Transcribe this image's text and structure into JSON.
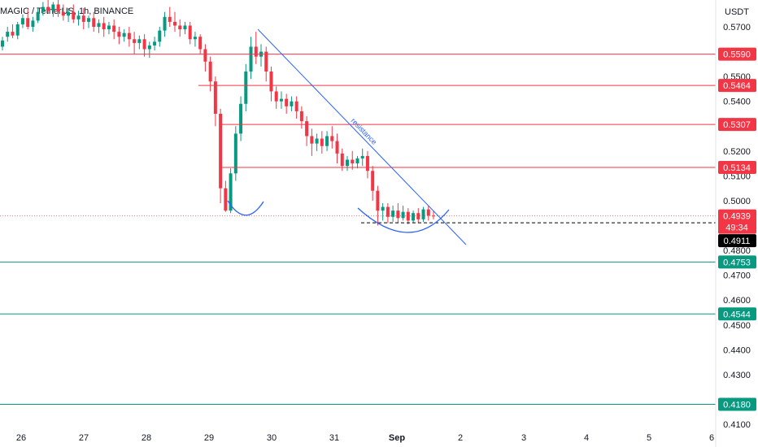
{
  "chart_data": {
    "type": "candlestick",
    "title": "MAGIC / TetherUS, 1h, BINANCE",
    "currency": "USDT",
    "ylim": [
      0.41,
      0.575
    ],
    "y_ticks": [
      "0.5700",
      "0.5500",
      "0.5400",
      "0.5200",
      "0.5100",
      "0.5000",
      "0.4800",
      "0.4700",
      "0.4600",
      "0.4500",
      "0.4400",
      "0.4300",
      "0.4100"
    ],
    "x_ticks": [
      "26",
      "27",
      "28",
      "29",
      "30",
      "31",
      "Sep",
      "2",
      "3",
      "4",
      "5",
      "6"
    ],
    "resistance_levels": [
      {
        "value": 0.559,
        "label": "0.5590",
        "color": "#f23645"
      },
      {
        "value": 0.5464,
        "label": "0.5464",
        "color": "#f23645"
      },
      {
        "value": 0.5307,
        "label": "0.5307",
        "color": "#f23645"
      },
      {
        "value": 0.5134,
        "label": "0.5134",
        "color": "#f23645"
      }
    ],
    "support_levels": [
      {
        "value": 0.4753,
        "label": "0.4753",
        "color": "#089981"
      },
      {
        "value": 0.4544,
        "label": "0.4544",
        "color": "#089981"
      },
      {
        "value": 0.418,
        "label": "0.4180",
        "color": "#089981"
      }
    ],
    "current_price": {
      "value": 0.4939,
      "label": "0.4939",
      "countdown": "49:34",
      "color": "#f23645"
    },
    "dashed_level": {
      "value": 0.4911,
      "label": "0.4911",
      "color": "#000000"
    },
    "trendline_label": "resistance",
    "colors": {
      "up": "#089981",
      "down": "#f23645",
      "annotation": "#2962ff"
    },
    "candles": [
      [
        0.562,
        0.566,
        0.5645,
        0.5605
      ],
      [
        0.566,
        0.57,
        0.568,
        0.564
      ],
      [
        0.568,
        0.571,
        0.5665,
        0.5655
      ],
      [
        0.5665,
        0.572,
        0.571,
        0.565
      ],
      [
        0.571,
        0.575,
        0.5735,
        0.5695
      ],
      [
        0.5735,
        0.577,
        0.57,
        0.569
      ],
      [
        0.57,
        0.574,
        0.5725,
        0.568
      ],
      [
        0.5725,
        0.5775,
        0.576,
        0.5715
      ],
      [
        0.576,
        0.58,
        0.578,
        0.5745
      ],
      [
        0.578,
        0.581,
        0.5765,
        0.5755
      ],
      [
        0.5765,
        0.58,
        0.579,
        0.574
      ],
      [
        0.579,
        0.581,
        0.576,
        0.574
      ],
      [
        0.576,
        0.579,
        0.5745,
        0.5725
      ],
      [
        0.5745,
        0.5775,
        0.576,
        0.572
      ],
      [
        0.576,
        0.579,
        0.573,
        0.5715
      ],
      [
        0.573,
        0.5765,
        0.5745,
        0.5705
      ],
      [
        0.5745,
        0.5775,
        0.572,
        0.569
      ],
      [
        0.572,
        0.5745,
        0.5735,
        0.5695
      ],
      [
        0.5735,
        0.576,
        0.57,
        0.568
      ],
      [
        0.57,
        0.573,
        0.5715,
        0.5675
      ],
      [
        0.5715,
        0.574,
        0.569,
        0.566
      ],
      [
        0.569,
        0.572,
        0.5705,
        0.567
      ],
      [
        0.5705,
        0.573,
        0.568,
        0.565
      ],
      [
        0.568,
        0.57,
        0.566,
        0.563
      ],
      [
        0.566,
        0.569,
        0.5675,
        0.564
      ],
      [
        0.5675,
        0.57,
        0.565,
        0.562
      ],
      [
        0.565,
        0.568,
        0.5635,
        0.559
      ],
      [
        0.5635,
        0.5665,
        0.565,
        0.561
      ],
      [
        0.565,
        0.567,
        0.561,
        0.558
      ],
      [
        0.561,
        0.564,
        0.5625,
        0.5575
      ],
      [
        0.5625,
        0.566,
        0.564,
        0.5605
      ],
      [
        0.564,
        0.57,
        0.5685,
        0.562
      ],
      [
        0.5685,
        0.576,
        0.574,
        0.566
      ],
      [
        0.574,
        0.578,
        0.572,
        0.57
      ],
      [
        0.572,
        0.576,
        0.5705,
        0.568
      ],
      [
        0.5705,
        0.573,
        0.569,
        0.566
      ],
      [
        0.569,
        0.572,
        0.5705,
        0.567
      ],
      [
        0.5705,
        0.572,
        0.565,
        0.563
      ],
      [
        0.565,
        0.568,
        0.566,
        0.562
      ],
      [
        0.566,
        0.567,
        0.561,
        0.559
      ],
      [
        0.561,
        0.563,
        0.556,
        0.552
      ],
      [
        0.556,
        0.558,
        0.548,
        0.544
      ],
      [
        0.548,
        0.55,
        0.535,
        0.53
      ],
      [
        0.535,
        0.537,
        0.505,
        0.499
      ],
      [
        0.505,
        0.508,
        0.496,
        0.4955
      ],
      [
        0.496,
        0.513,
        0.511,
        0.495
      ],
      [
        0.511,
        0.53,
        0.527,
        0.508
      ],
      [
        0.527,
        0.542,
        0.539,
        0.524
      ],
      [
        0.539,
        0.555,
        0.552,
        0.536
      ],
      [
        0.552,
        0.566,
        0.562,
        0.549
      ],
      [
        0.562,
        0.568,
        0.558,
        0.555
      ],
      [
        0.558,
        0.563,
        0.56,
        0.554
      ],
      [
        0.56,
        0.562,
        0.552,
        0.548
      ],
      [
        0.552,
        0.554,
        0.544,
        0.54
      ],
      [
        0.544,
        0.546,
        0.54,
        0.537
      ],
      [
        0.54,
        0.544,
        0.541,
        0.537
      ],
      [
        0.541,
        0.543,
        0.538,
        0.535
      ],
      [
        0.538,
        0.542,
        0.54,
        0.536
      ],
      [
        0.54,
        0.542,
        0.536,
        0.533
      ],
      [
        0.536,
        0.538,
        0.532,
        0.529
      ],
      [
        0.532,
        0.534,
        0.526,
        0.522
      ],
      [
        0.526,
        0.529,
        0.523,
        0.518
      ],
      [
        0.523,
        0.527,
        0.525,
        0.52
      ],
      [
        0.525,
        0.528,
        0.522,
        0.519
      ],
      [
        0.522,
        0.528,
        0.526,
        0.52
      ],
      [
        0.526,
        0.53,
        0.524,
        0.521
      ],
      [
        0.524,
        0.527,
        0.519,
        0.515
      ],
      [
        0.519,
        0.521,
        0.514,
        0.512
      ],
      [
        0.514,
        0.518,
        0.5165,
        0.512
      ],
      [
        0.5165,
        0.52,
        0.515,
        0.5125
      ],
      [
        0.515,
        0.518,
        0.517,
        0.513
      ],
      [
        0.517,
        0.521,
        0.518,
        0.514
      ],
      [
        0.518,
        0.52,
        0.512,
        0.509
      ],
      [
        0.512,
        0.514,
        0.504,
        0.5
      ],
      [
        0.504,
        0.506,
        0.496,
        0.49
      ],
      [
        0.496,
        0.499,
        0.4975,
        0.492
      ],
      [
        0.4975,
        0.499,
        0.4935,
        0.491
      ],
      [
        0.4935,
        0.498,
        0.496,
        0.4915
      ],
      [
        0.496,
        0.499,
        0.493,
        0.491
      ],
      [
        0.493,
        0.498,
        0.4955,
        0.492
      ],
      [
        0.4955,
        0.497,
        0.492,
        0.4905
      ],
      [
        0.492,
        0.496,
        0.495,
        0.491
      ],
      [
        0.495,
        0.497,
        0.4925,
        0.491
      ],
      [
        0.4925,
        0.4975,
        0.4965,
        0.4915
      ],
      [
        0.4965,
        0.498,
        0.494,
        0.492
      ],
      [
        0.494,
        0.496,
        0.4939,
        0.4925
      ]
    ]
  }
}
